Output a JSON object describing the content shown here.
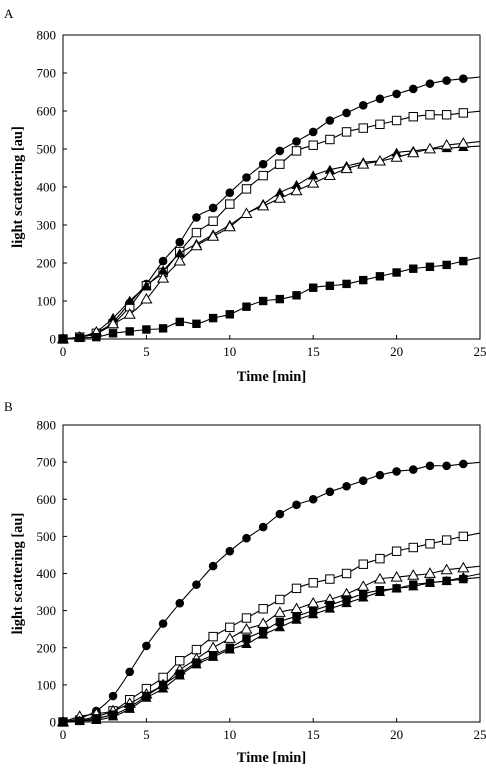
{
  "chart_data": [
    {
      "type": "line",
      "panel_label": "A",
      "xlabel": "Time [min]",
      "ylabel": "light scattering [au]",
      "xlim": [
        0,
        25
      ],
      "ylim": [
        0,
        800
      ],
      "xticks": [
        0,
        5,
        10,
        15,
        20,
        25
      ],
      "yticks": [
        0,
        100,
        200,
        300,
        400,
        500,
        600,
        700,
        800
      ],
      "grid": false,
      "legend": "none",
      "series": [
        {
          "marker": "filled-circle",
          "x": [
            0,
            1,
            2,
            3,
            4,
            5,
            6,
            7,
            8,
            9,
            10,
            11,
            12,
            13,
            14,
            15,
            16,
            17,
            18,
            19,
            20,
            21,
            22,
            23,
            24
          ],
          "y": [
            0,
            5,
            15,
            45,
            95,
            145,
            205,
            255,
            320,
            345,
            385,
            425,
            460,
            495,
            520,
            545,
            575,
            595,
            615,
            632,
            645,
            658,
            672,
            680,
            685
          ]
        },
        {
          "marker": "open-square",
          "x": [
            0,
            1,
            2,
            3,
            4,
            5,
            6,
            7,
            8,
            9,
            10,
            11,
            12,
            13,
            14,
            15,
            16,
            17,
            18,
            19,
            20,
            21,
            22,
            23,
            24
          ],
          "y": [
            0,
            5,
            15,
            40,
            85,
            140,
            175,
            230,
            280,
            310,
            355,
            395,
            430,
            460,
            495,
            510,
            525,
            545,
            555,
            565,
            575,
            585,
            590,
            590,
            595
          ]
        },
        {
          "marker": "filled-triangle",
          "x": [
            0,
            1,
            2,
            3,
            4,
            5,
            6,
            7,
            8,
            9,
            10,
            11,
            12,
            13,
            14,
            15,
            16,
            17,
            18,
            19,
            20,
            21,
            22,
            23,
            24
          ],
          "y": [
            0,
            5,
            20,
            55,
            100,
            140,
            180,
            225,
            250,
            275,
            300,
            330,
            355,
            385,
            405,
            430,
            445,
            455,
            465,
            470,
            490,
            495,
            500,
            502,
            505
          ]
        },
        {
          "marker": "open-triangle",
          "x": [
            0,
            1,
            2,
            3,
            4,
            5,
            6,
            7,
            8,
            9,
            10,
            11,
            12,
            13,
            14,
            15,
            16,
            17,
            18,
            19,
            20,
            21,
            22,
            23,
            24
          ],
          "y": [
            0,
            5,
            18,
            40,
            65,
            105,
            160,
            205,
            245,
            270,
            295,
            330,
            350,
            370,
            390,
            410,
            430,
            448,
            460,
            468,
            478,
            490,
            500,
            510,
            515
          ]
        },
        {
          "marker": "filled-square",
          "x": [
            0,
            1,
            2,
            3,
            4,
            5,
            6,
            7,
            8,
            9,
            10,
            11,
            12,
            13,
            14,
            15,
            16,
            17,
            18,
            19,
            20,
            21,
            22,
            23,
            24
          ],
          "y": [
            0,
            3,
            5,
            15,
            20,
            25,
            28,
            45,
            40,
            55,
            65,
            85,
            100,
            105,
            115,
            135,
            140,
            145,
            155,
            165,
            175,
            185,
            190,
            195,
            205
          ]
        }
      ]
    },
    {
      "type": "line",
      "panel_label": "B",
      "xlabel": "Time [min]",
      "ylabel": "light scattering [au]",
      "xlim": [
        0,
        25
      ],
      "ylim": [
        0,
        800
      ],
      "xticks": [
        0,
        5,
        10,
        15,
        20,
        25
      ],
      "yticks": [
        0,
        100,
        200,
        300,
        400,
        500,
        600,
        700,
        800
      ],
      "grid": false,
      "legend": "none",
      "series": [
        {
          "marker": "filled-circle",
          "x": [
            0,
            1,
            2,
            3,
            4,
            5,
            6,
            7,
            8,
            9,
            10,
            11,
            12,
            13,
            14,
            15,
            16,
            17,
            18,
            19,
            20,
            21,
            22,
            23,
            24
          ],
          "y": [
            0,
            10,
            30,
            70,
            135,
            205,
            265,
            320,
            370,
            420,
            460,
            495,
            525,
            560,
            585,
            600,
            620,
            635,
            650,
            665,
            675,
            680,
            690,
            690,
            695
          ]
        },
        {
          "marker": "open-square",
          "x": [
            0,
            1,
            2,
            3,
            4,
            5,
            6,
            7,
            8,
            9,
            10,
            11,
            12,
            13,
            14,
            15,
            16,
            17,
            18,
            19,
            20,
            21,
            22,
            23,
            24
          ],
          "y": [
            0,
            5,
            15,
            30,
            60,
            90,
            120,
            165,
            195,
            230,
            255,
            280,
            305,
            330,
            360,
            375,
            385,
            400,
            425,
            440,
            460,
            470,
            480,
            490,
            500
          ]
        },
        {
          "marker": "open-triangle",
          "x": [
            0,
            1,
            2,
            3,
            4,
            5,
            6,
            7,
            8,
            9,
            10,
            11,
            12,
            13,
            14,
            15,
            16,
            17,
            18,
            19,
            20,
            21,
            22,
            23,
            24
          ],
          "y": [
            0,
            15,
            22,
            30,
            50,
            75,
            100,
            140,
            170,
            200,
            225,
            250,
            265,
            295,
            305,
            320,
            330,
            345,
            365,
            385,
            390,
            395,
            400,
            410,
            415
          ]
        },
        {
          "marker": "filled-square",
          "x": [
            0,
            1,
            2,
            3,
            4,
            5,
            6,
            7,
            8,
            9,
            10,
            11,
            12,
            13,
            14,
            15,
            16,
            17,
            18,
            19,
            20,
            21,
            22,
            23,
            24
          ],
          "y": [
            0,
            3,
            10,
            20,
            40,
            70,
            100,
            130,
            160,
            180,
            200,
            225,
            245,
            270,
            285,
            300,
            315,
            330,
            345,
            355,
            360,
            370,
            375,
            380,
            385
          ]
        },
        {
          "marker": "filled-triangle",
          "x": [
            0,
            1,
            2,
            3,
            4,
            5,
            6,
            7,
            8,
            9,
            10,
            11,
            12,
            13,
            14,
            15,
            16,
            17,
            18,
            19,
            20,
            21,
            22,
            23,
            24
          ],
          "y": [
            0,
            3,
            5,
            15,
            35,
            65,
            90,
            125,
            155,
            175,
            195,
            210,
            235,
            255,
            275,
            290,
            305,
            320,
            335,
            350,
            360,
            365,
            375,
            380,
            390
          ]
        }
      ]
    }
  ]
}
